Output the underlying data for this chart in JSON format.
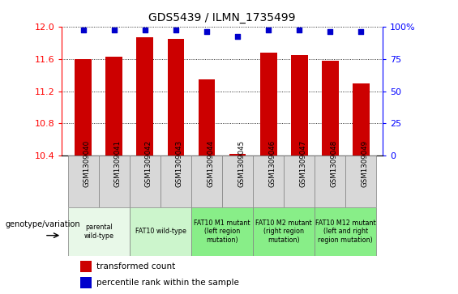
{
  "title": "GDS5439 / ILMN_1735499",
  "samples": [
    "GSM1309040",
    "GSM1309041",
    "GSM1309042",
    "GSM1309043",
    "GSM1309044",
    "GSM1309045",
    "GSM1309046",
    "GSM1309047",
    "GSM1309048",
    "GSM1309049"
  ],
  "red_values": [
    11.6,
    11.63,
    11.87,
    11.85,
    11.35,
    10.42,
    11.68,
    11.65,
    11.58,
    11.3
  ],
  "blue_values": [
    97,
    97,
    97,
    97,
    96,
    92,
    97,
    97,
    96,
    96
  ],
  "ylim": [
    10.4,
    12.0
  ],
  "yticks": [
    10.4,
    10.8,
    11.2,
    11.6,
    12.0
  ],
  "right_yticks": [
    0,
    25,
    50,
    75,
    100
  ],
  "bar_color": "#cc0000",
  "dot_color": "#0000cc",
  "bar_width": 0.55,
  "genotype_groups": [
    {
      "label": "parental\nwild-type",
      "span": [
        0,
        2
      ],
      "color": "#e8f8e8"
    },
    {
      "label": "FAT10 wild-type",
      "span": [
        2,
        4
      ],
      "color": "#ccf5cc"
    },
    {
      "label": "FAT10 M1 mutant\n(left region\nmutation)",
      "span": [
        4,
        6
      ],
      "color": "#88ee88"
    },
    {
      "label": "FAT10 M2 mutant\n(right region\nmutation)",
      "span": [
        6,
        8
      ],
      "color": "#88ee88"
    },
    {
      "label": "FAT10 M12 mutant\n(left and right\nregion mutation)",
      "span": [
        8,
        10
      ],
      "color": "#88ee88"
    }
  ],
  "legend_red": "transformed count",
  "legend_blue": "percentile rank within the sample",
  "genotype_label": "genotype/variation"
}
